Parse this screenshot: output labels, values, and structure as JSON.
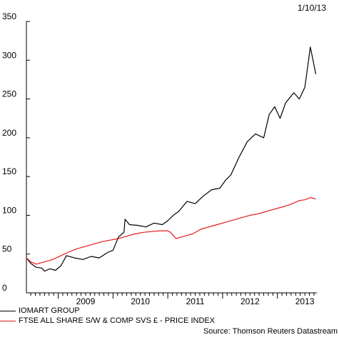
{
  "date_label": "1/10/13",
  "source_label": "Source: Thomson Reuters Datastream",
  "colors": {
    "series_0": "#000000",
    "series_1": "#e41a1c"
  },
  "chart_data": {
    "type": "line",
    "title": "",
    "xlabel": "",
    "ylabel": "",
    "ylim": [
      0,
      350
    ],
    "xlim": [
      2008.42,
      2013.72
    ],
    "y_ticks": [
      0,
      50,
      100,
      150,
      200,
      250,
      300,
      350
    ],
    "y_tick_labels": [
      "0",
      "50",
      "100",
      "150",
      "200",
      "250",
      "300",
      "350"
    ],
    "x_ticks": [
      2009.0,
      2010.0,
      2011.0,
      2012.0,
      2013.0
    ],
    "x_tick_labels": [
      "2009",
      "2010",
      "2011",
      "2012",
      "2013"
    ],
    "grid": false,
    "legend_position": "bottom-left",
    "series": [
      {
        "name": "IOMART GROUP",
        "color": "#000000",
        "x": [
          2008.42,
          2008.5,
          2008.6,
          2008.7,
          2008.75,
          2008.85,
          2008.95,
          2009.05,
          2009.15,
          2009.3,
          2009.45,
          2009.6,
          2009.75,
          2009.9,
          2010.0,
          2010.1,
          2010.2,
          2010.22,
          2010.3,
          2010.45,
          2010.6,
          2010.75,
          2010.9,
          2011.0,
          2011.1,
          2011.2,
          2011.35,
          2011.5,
          2011.65,
          2011.8,
          2011.95,
          2012.05,
          2012.15,
          2012.3,
          2012.45,
          2012.6,
          2012.75,
          2012.85,
          2012.95,
          2013.05,
          2013.15,
          2013.3,
          2013.4,
          2013.5,
          2013.55,
          2013.6,
          2013.65,
          2013.7
        ],
        "values": [
          45,
          38,
          33,
          32,
          28,
          31,
          29,
          35,
          48,
          45,
          43,
          47,
          45,
          52,
          55,
          72,
          78,
          95,
          88,
          87,
          85,
          90,
          88,
          93,
          100,
          105,
          118,
          115,
          125,
          133,
          135,
          145,
          152,
          175,
          195,
          205,
          200,
          230,
          240,
          225,
          245,
          258,
          250,
          265,
          290,
          317,
          300,
          282
        ]
      },
      {
        "name": "FTSE ALL SHARE S/W & COMP SVS £ - PRICE INDEX",
        "color": "#e41a1c",
        "x": [
          2008.42,
          2008.5,
          2008.6,
          2008.75,
          2008.9,
          2009.05,
          2009.2,
          2009.35,
          2009.5,
          2009.65,
          2009.8,
          2009.95,
          2010.1,
          2010.25,
          2010.4,
          2010.55,
          2010.7,
          2010.85,
          2011.0,
          2011.05,
          2011.15,
          2011.3,
          2011.45,
          2011.6,
          2011.75,
          2011.9,
          2012.05,
          2012.2,
          2012.35,
          2012.5,
          2012.65,
          2012.8,
          2012.95,
          2013.1,
          2013.2,
          2013.3,
          2013.4,
          2013.5,
          2013.6,
          2013.7
        ],
        "values": [
          45,
          40,
          37,
          40,
          43,
          48,
          53,
          57,
          60,
          63,
          66,
          68,
          70,
          73,
          76,
          78,
          79,
          80,
          80,
          78,
          70,
          73,
          76,
          82,
          85,
          88,
          91,
          94,
          97,
          100,
          102,
          105,
          108,
          111,
          113,
          116,
          119,
          120,
          123,
          121
        ]
      }
    ]
  }
}
